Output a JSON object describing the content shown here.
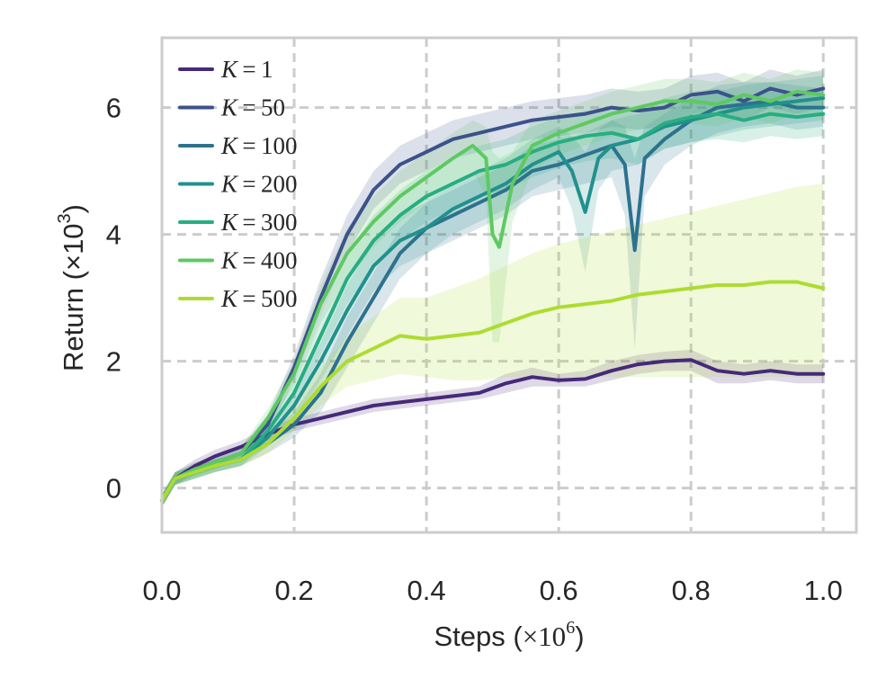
{
  "chart_data": {
    "type": "line",
    "xlabel_prefix": "Steps (",
    "xlabel_unit": "×10",
    "xlabel_exp": "6",
    "xlabel_suffix": ")",
    "ylabel_prefix": "Return (×10",
    "ylabel_exp": "3",
    "ylabel_suffix": ")",
    "xlim": [
      0.0,
      1.05
    ],
    "ylim": [
      -0.7,
      7.1
    ],
    "xticks": [
      0.0,
      0.2,
      0.4,
      0.6,
      0.8,
      1.0
    ],
    "xtick_labels": [
      "0.0",
      "0.2",
      "0.4",
      "0.6",
      "0.8",
      "1.0"
    ],
    "yticks": [
      0,
      2,
      4,
      6
    ],
    "ytick_labels": [
      "0",
      "2",
      "4",
      "6"
    ],
    "grid": true,
    "legend_position": "top-left",
    "series": [
      {
        "name": "K = 1",
        "k_var": "K",
        "k_value": "1",
        "color": "#46297a",
        "x": [
          0.0,
          0.02,
          0.05,
          0.08,
          0.12,
          0.16,
          0.2,
          0.24,
          0.28,
          0.32,
          0.36,
          0.4,
          0.44,
          0.48,
          0.52,
          0.56,
          0.6,
          0.64,
          0.68,
          0.72,
          0.76,
          0.8,
          0.84,
          0.88,
          0.92,
          0.96,
          1.0
        ],
        "y": [
          -0.2,
          0.15,
          0.35,
          0.5,
          0.65,
          0.85,
          1.0,
          1.1,
          1.2,
          1.3,
          1.35,
          1.4,
          1.45,
          1.5,
          1.65,
          1.75,
          1.7,
          1.72,
          1.85,
          1.95,
          2.0,
          2.02,
          1.85,
          1.8,
          1.85,
          1.8,
          1.8
        ],
        "lo": [
          -0.3,
          0.05,
          0.25,
          0.4,
          0.55,
          0.75,
          0.9,
          1.0,
          1.1,
          1.2,
          1.25,
          1.3,
          1.35,
          1.4,
          1.5,
          1.6,
          1.6,
          1.6,
          1.7,
          1.8,
          1.85,
          1.85,
          1.65,
          1.65,
          1.7,
          1.65,
          1.65
        ],
        "hi": [
          -0.1,
          0.25,
          0.45,
          0.6,
          0.75,
          0.95,
          1.1,
          1.2,
          1.3,
          1.4,
          1.45,
          1.5,
          1.55,
          1.6,
          1.8,
          1.9,
          1.8,
          1.85,
          2.0,
          2.1,
          2.15,
          2.18,
          2.0,
          1.95,
          2.0,
          1.95,
          1.95
        ]
      },
      {
        "name": "K = 50",
        "k_var": "K",
        "k_value": "50",
        "color": "#3b528b",
        "x": [
          0.0,
          0.02,
          0.05,
          0.08,
          0.12,
          0.16,
          0.2,
          0.24,
          0.28,
          0.32,
          0.36,
          0.4,
          0.44,
          0.48,
          0.52,
          0.56,
          0.6,
          0.64,
          0.68,
          0.72,
          0.76,
          0.8,
          0.84,
          0.88,
          0.92,
          0.96,
          1.0
        ],
        "y": [
          -0.2,
          0.15,
          0.3,
          0.4,
          0.55,
          1.0,
          1.9,
          3.0,
          4.0,
          4.7,
          5.1,
          5.3,
          5.5,
          5.6,
          5.7,
          5.8,
          5.85,
          5.9,
          6.0,
          5.95,
          6.0,
          6.2,
          6.25,
          6.1,
          6.3,
          6.2,
          6.3
        ],
        "lo": [
          -0.3,
          0.05,
          0.2,
          0.3,
          0.45,
          0.85,
          1.7,
          2.7,
          3.7,
          4.4,
          4.8,
          5.0,
          5.2,
          5.3,
          5.4,
          5.5,
          5.55,
          5.6,
          5.7,
          5.65,
          5.7,
          5.9,
          5.95,
          5.8,
          6.0,
          5.9,
          6.0
        ],
        "hi": [
          -0.1,
          0.25,
          0.4,
          0.5,
          0.65,
          1.15,
          2.1,
          3.3,
          4.3,
          5.0,
          5.4,
          5.6,
          5.8,
          5.9,
          6.0,
          6.1,
          6.15,
          6.2,
          6.3,
          6.25,
          6.3,
          6.5,
          6.55,
          6.4,
          6.6,
          6.5,
          6.6
        ]
      },
      {
        "name": "K = 100",
        "k_var": "K",
        "k_value": "100",
        "color": "#2c728e",
        "x": [
          0.0,
          0.02,
          0.05,
          0.08,
          0.12,
          0.16,
          0.2,
          0.24,
          0.28,
          0.32,
          0.36,
          0.4,
          0.44,
          0.48,
          0.52,
          0.56,
          0.6,
          0.64,
          0.68,
          0.7,
          0.715,
          0.73,
          0.76,
          0.8,
          0.84,
          0.88,
          0.92,
          0.96,
          1.0
        ],
        "y": [
          -0.2,
          0.15,
          0.25,
          0.35,
          0.45,
          0.7,
          1.0,
          1.5,
          2.3,
          3.0,
          3.7,
          4.1,
          4.3,
          4.5,
          4.7,
          5.0,
          5.1,
          5.25,
          5.4,
          5.1,
          3.75,
          5.2,
          5.5,
          5.8,
          6.0,
          6.05,
          6.1,
          6.0,
          6.0
        ],
        "lo": [
          -0.3,
          0.05,
          0.15,
          0.25,
          0.35,
          0.55,
          0.8,
          1.2,
          1.9,
          2.6,
          3.3,
          3.7,
          3.9,
          4.1,
          4.3,
          4.6,
          4.7,
          4.8,
          4.9,
          4.3,
          2.2,
          4.6,
          5.1,
          5.4,
          5.6,
          5.7,
          5.75,
          5.65,
          5.7
        ],
        "hi": [
          -0.1,
          0.25,
          0.35,
          0.45,
          0.55,
          0.85,
          1.2,
          1.8,
          2.7,
          3.4,
          4.1,
          4.5,
          4.7,
          4.9,
          5.1,
          5.4,
          5.5,
          5.6,
          5.8,
          5.7,
          5.2,
          5.7,
          5.9,
          6.15,
          6.35,
          6.4,
          6.4,
          6.35,
          6.3
        ]
      },
      {
        "name": "K = 200",
        "k_var": "K",
        "k_value": "200",
        "color": "#21918c",
        "x": [
          0.0,
          0.02,
          0.05,
          0.08,
          0.12,
          0.16,
          0.2,
          0.24,
          0.28,
          0.32,
          0.36,
          0.4,
          0.44,
          0.48,
          0.52,
          0.56,
          0.6,
          0.62,
          0.64,
          0.66,
          0.68,
          0.72,
          0.76,
          0.8,
          0.84,
          0.88,
          0.92,
          0.96,
          1.0
        ],
        "y": [
          -0.2,
          0.15,
          0.25,
          0.35,
          0.45,
          0.8,
          1.3,
          2.0,
          2.8,
          3.5,
          3.9,
          4.1,
          4.4,
          4.6,
          4.8,
          5.1,
          5.3,
          5.0,
          4.35,
          5.2,
          5.4,
          5.5,
          5.7,
          5.8,
          5.9,
          6.0,
          6.05,
          6.1,
          6.15
        ],
        "lo": [
          -0.3,
          0.05,
          0.15,
          0.25,
          0.35,
          0.65,
          1.1,
          1.7,
          2.4,
          3.1,
          3.5,
          3.7,
          4.0,
          4.2,
          4.4,
          4.7,
          4.9,
          4.4,
          3.4,
          4.7,
          5.0,
          5.1,
          5.35,
          5.45,
          5.55,
          5.65,
          5.7,
          5.75,
          5.8
        ],
        "hi": [
          -0.1,
          0.25,
          0.35,
          0.45,
          0.55,
          0.95,
          1.5,
          2.3,
          3.2,
          3.9,
          4.3,
          4.5,
          4.8,
          5.0,
          5.2,
          5.5,
          5.7,
          5.55,
          5.3,
          5.65,
          5.8,
          5.9,
          6.05,
          6.15,
          6.25,
          6.35,
          6.4,
          6.45,
          6.5
        ]
      },
      {
        "name": "K = 300",
        "k_var": "K",
        "k_value": "300",
        "color": "#27ad81",
        "x": [
          0.0,
          0.02,
          0.05,
          0.08,
          0.12,
          0.16,
          0.2,
          0.24,
          0.28,
          0.32,
          0.36,
          0.4,
          0.44,
          0.48,
          0.52,
          0.56,
          0.6,
          0.64,
          0.68,
          0.72,
          0.76,
          0.8,
          0.84,
          0.88,
          0.92,
          0.96,
          1.0
        ],
        "y": [
          -0.2,
          0.15,
          0.25,
          0.35,
          0.45,
          0.9,
          1.5,
          2.4,
          3.3,
          3.9,
          4.3,
          4.6,
          4.8,
          5.0,
          5.1,
          5.3,
          5.45,
          5.55,
          5.6,
          5.5,
          5.75,
          5.85,
          5.9,
          5.8,
          5.9,
          5.85,
          5.9
        ],
        "lo": [
          -0.3,
          0.05,
          0.15,
          0.25,
          0.35,
          0.75,
          1.3,
          2.1,
          2.9,
          3.5,
          3.9,
          4.2,
          4.4,
          4.6,
          4.7,
          4.9,
          5.05,
          5.15,
          5.2,
          5.1,
          5.35,
          5.45,
          5.5,
          5.45,
          5.55,
          5.5,
          5.55
        ],
        "hi": [
          -0.1,
          0.25,
          0.35,
          0.45,
          0.55,
          1.05,
          1.7,
          2.7,
          3.7,
          4.3,
          4.7,
          5.0,
          5.2,
          5.4,
          5.5,
          5.7,
          5.85,
          5.95,
          6.0,
          5.9,
          6.15,
          6.25,
          6.3,
          6.15,
          6.25,
          6.2,
          6.25
        ]
      },
      {
        "name": "K = 400",
        "k_var": "K",
        "k_value": "400",
        "color": "#5ec962",
        "x": [
          0.0,
          0.02,
          0.05,
          0.08,
          0.12,
          0.16,
          0.2,
          0.24,
          0.28,
          0.32,
          0.36,
          0.4,
          0.44,
          0.47,
          0.49,
          0.5,
          0.51,
          0.53,
          0.56,
          0.6,
          0.64,
          0.68,
          0.72,
          0.76,
          0.8,
          0.84,
          0.88,
          0.92,
          0.96,
          1.0
        ],
        "y": [
          -0.2,
          0.15,
          0.3,
          0.4,
          0.55,
          1.1,
          1.8,
          2.9,
          3.7,
          4.2,
          4.6,
          4.9,
          5.2,
          5.4,
          5.2,
          4.0,
          3.8,
          4.8,
          5.4,
          5.6,
          5.75,
          5.9,
          6.0,
          6.1,
          6.1,
          6.05,
          6.2,
          6.1,
          6.25,
          6.2
        ],
        "lo": [
          -0.3,
          0.05,
          0.2,
          0.3,
          0.45,
          0.95,
          1.6,
          2.6,
          3.3,
          3.8,
          4.2,
          4.5,
          4.8,
          5.0,
          4.6,
          2.3,
          2.3,
          4.2,
          5.0,
          5.25,
          5.4,
          5.55,
          5.65,
          5.75,
          5.75,
          5.7,
          5.85,
          5.75,
          5.9,
          5.85
        ],
        "hi": [
          -0.1,
          0.25,
          0.4,
          0.5,
          0.65,
          1.25,
          2.0,
          3.2,
          4.1,
          4.6,
          5.0,
          5.3,
          5.6,
          5.8,
          5.7,
          5.3,
          5.2,
          5.3,
          5.8,
          5.95,
          6.1,
          6.25,
          6.35,
          6.45,
          6.45,
          6.4,
          6.55,
          6.45,
          6.6,
          6.55
        ]
      },
      {
        "name": "K = 500",
        "k_var": "K",
        "k_value": "500",
        "color": "#addc30",
        "x": [
          0.0,
          0.02,
          0.05,
          0.08,
          0.12,
          0.16,
          0.2,
          0.24,
          0.28,
          0.32,
          0.36,
          0.4,
          0.44,
          0.48,
          0.52,
          0.56,
          0.6,
          0.64,
          0.68,
          0.72,
          0.76,
          0.8,
          0.84,
          0.88,
          0.92,
          0.96,
          1.0
        ],
        "y": [
          -0.2,
          0.15,
          0.25,
          0.35,
          0.45,
          0.7,
          1.1,
          1.6,
          2.0,
          2.2,
          2.4,
          2.35,
          2.4,
          2.45,
          2.6,
          2.75,
          2.85,
          2.9,
          2.95,
          3.05,
          3.1,
          3.15,
          3.2,
          3.2,
          3.25,
          3.25,
          3.15
        ],
        "lo": [
          -0.3,
          0.05,
          0.15,
          0.25,
          0.35,
          0.55,
          0.9,
          1.3,
          1.6,
          1.7,
          1.8,
          1.75,
          1.7,
          1.7,
          1.75,
          1.75,
          1.75,
          1.75,
          1.75,
          1.75,
          1.75,
          1.75,
          1.75,
          1.75,
          1.75,
          1.75,
          1.75
        ],
        "hi": [
          -0.1,
          0.25,
          0.35,
          0.45,
          0.55,
          0.85,
          1.3,
          1.9,
          2.4,
          2.7,
          3.0,
          3.0,
          3.15,
          3.3,
          3.5,
          3.7,
          3.85,
          3.95,
          4.05,
          4.15,
          4.25,
          4.35,
          4.45,
          4.55,
          4.65,
          4.75,
          4.8
        ]
      }
    ]
  }
}
